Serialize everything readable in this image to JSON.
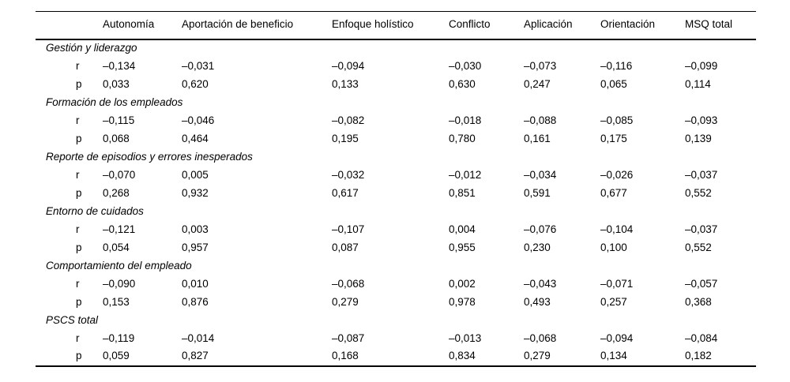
{
  "table": {
    "columns": [
      "",
      "Autonomía",
      "Aportación de beneficio",
      "Enfoque holístico",
      "Conflicto",
      "Aplicación",
      "Orientación",
      "MSQ total"
    ],
    "row_labels": {
      "r": "r",
      "p": "p"
    },
    "sections": [
      {
        "title": "Gestión y liderazgo",
        "r": [
          "–0,134",
          "–0,031",
          "–0,094",
          "–0,030",
          "–0,073",
          "–0,116",
          "–0,099"
        ],
        "p": [
          "0,033",
          "0,620",
          "0,133",
          "0,630",
          "0,247",
          "0,065",
          "0,114"
        ]
      },
      {
        "title": "Formación de los empleados",
        "r": [
          "–0,115",
          "–0,046",
          "–0,082",
          "–0,018",
          "–0,088",
          "–0,085",
          "–0,093"
        ],
        "p": [
          "0,068",
          "0,464",
          "0,195",
          "0,780",
          "0,161",
          "0,175",
          "0,139"
        ]
      },
      {
        "title": "Reporte de episodios y errores inesperados",
        "r": [
          "–0,070",
          "0,005",
          "–0,032",
          "–0,012",
          "–0,034",
          "–0,026",
          "–0,037"
        ],
        "p": [
          "0,268",
          "0,932",
          "0,617",
          "0,851",
          "0,591",
          "0,677",
          "0,552"
        ]
      },
      {
        "title": "Entorno de cuidados",
        "r": [
          "–0,121",
          "0,003",
          "–0,107",
          "0,004",
          "–0,076",
          "–0,104",
          "–0,037"
        ],
        "p": [
          "0,054",
          "0,957",
          "0,087",
          "0,955",
          "0,230",
          "0,100",
          "0,552"
        ]
      },
      {
        "title": "Comportamiento del empleado",
        "r": [
          "–0,090",
          "0,010",
          "–0,068",
          "0,002",
          "–0,043",
          "–0,071",
          "–0,057"
        ],
        "p": [
          "0,153",
          "0,876",
          "0,279",
          "0,978",
          "0,493",
          "0,257",
          "0,368"
        ]
      },
      {
        "title": "PSCS total",
        "r": [
          "–0,119",
          "–0,014",
          "–0,087",
          "–0,013",
          "–0,068",
          "–0,094",
          "–0,084"
        ],
        "p": [
          "0,059",
          "0,827",
          "0,168",
          "0,834",
          "0,279",
          "0,134",
          "0,182"
        ]
      }
    ]
  }
}
